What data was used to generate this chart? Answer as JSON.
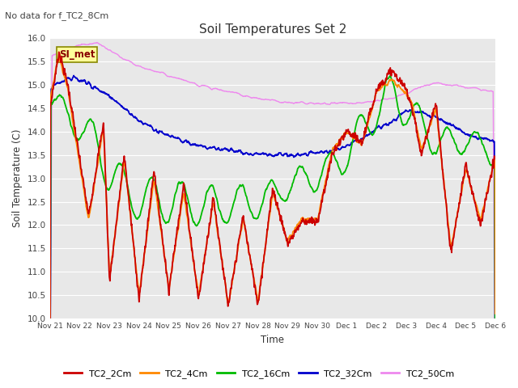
{
  "title": "Soil Temperatures Set 2",
  "no_data_note": "No data for f_TC2_8Cm",
  "xlabel": "Time",
  "ylabel": "Soil Temperature (C)",
  "ylim": [
    10.0,
    16.0
  ],
  "yticks": [
    10.0,
    10.5,
    11.0,
    11.5,
    12.0,
    12.5,
    13.0,
    13.5,
    14.0,
    14.5,
    15.0,
    15.5,
    16.0
  ],
  "bg_color": "#e8e8e8",
  "fig_color": "#ffffff",
  "legend_entries": [
    "TC2_2Cm",
    "TC2_4Cm",
    "TC2_16Cm",
    "TC2_32Cm",
    "TC2_50Cm"
  ],
  "line_colors": [
    "#cc0000",
    "#ff8800",
    "#00bb00",
    "#0000cc",
    "#ee88ee"
  ],
  "line_widths": [
    1.3,
    1.3,
    1.3,
    1.3,
    1.0
  ],
  "si_met_label": "SI_met",
  "si_met_box_color": "#ffff99",
  "si_met_box_edge": "#888800",
  "si_met_text_color": "#880000",
  "xtick_labels": [
    "Nov 21",
    "Nov 22",
    "Nov 23",
    "Nov 24",
    "Nov 25",
    "Nov 26",
    "Nov 27",
    "Nov 28",
    "Nov 29",
    "Nov 30",
    "Dec 1",
    "Dec 2",
    "Dec 3",
    "Dec 4",
    "Dec 5",
    "Dec 6"
  ],
  "num_days": 15,
  "points_per_day": 96
}
